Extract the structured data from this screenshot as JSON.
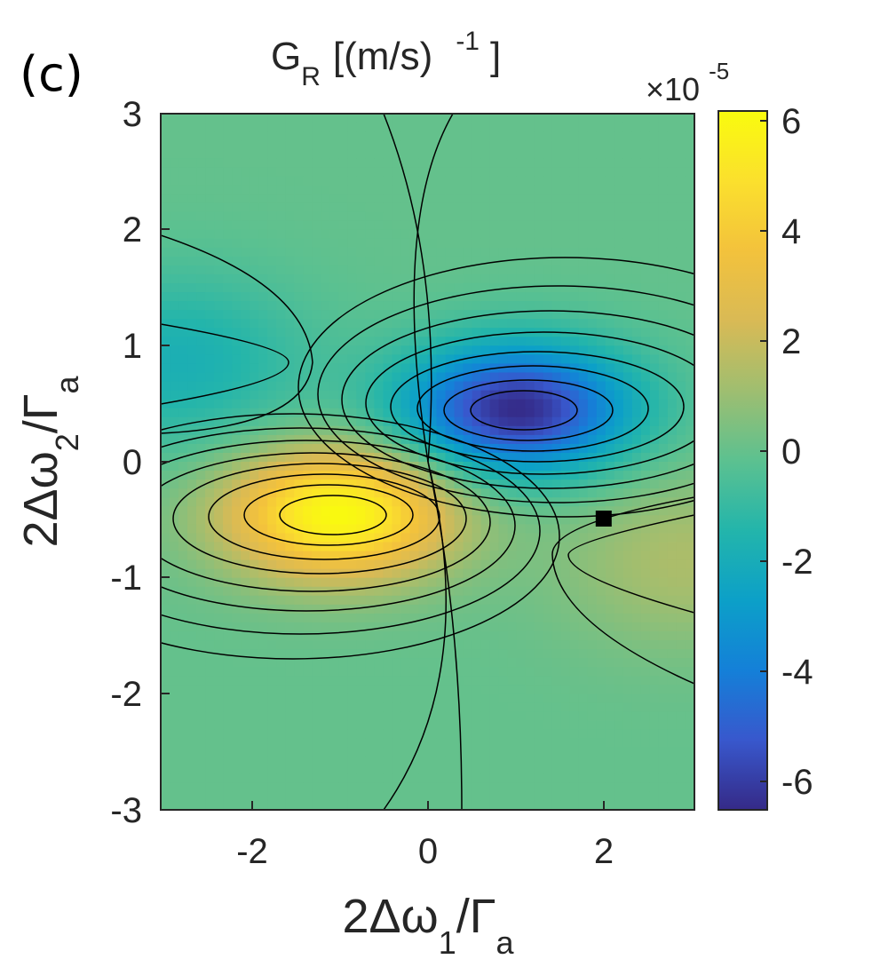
{
  "panel_label": "(c)",
  "title": {
    "main": "G",
    "sub": "R",
    "rest": "[(m/s)",
    "sup": "-1",
    "close": "]"
  },
  "colorbar": {
    "multiplier": "×10",
    "exponent": "-5",
    "ticks": [
      "6",
      "4",
      "2",
      "0",
      "-2",
      "-4",
      "-6"
    ]
  },
  "x_ticks": [
    "-2",
    "0",
    "2"
  ],
  "y_ticks": [
    "3",
    "2",
    "1",
    "0",
    "-1",
    "-2",
    "-3"
  ],
  "xlabel": {
    "pre": "2Δω",
    "sub": "1",
    "mid": "/Γ",
    "sub2": "a"
  },
  "ylabel": {
    "pre": "2Δω",
    "sub": "2",
    "mid": "/Γ",
    "sub2": "a"
  },
  "colormap": "parula",
  "chart_data": {
    "type": "heatmap",
    "subtype": "filled contour",
    "title": "G_R [(m/s)^-1]",
    "xlabel": "2Δω_1/Γ_a",
    "ylabel": "2Δω_2/Γ_a",
    "xlim": [
      -3,
      3
    ],
    "ylim": [
      -3,
      3
    ],
    "clim": [
      -6.5,
      6.2
    ],
    "color_scale_exponent": -5,
    "features": [
      {
        "kind": "maximum",
        "x": -1.0,
        "y": -0.45,
        "value": 6.2
      },
      {
        "kind": "minimum",
        "x": 1.0,
        "y": 0.45,
        "value": -6.5
      },
      {
        "kind": "local_minimum",
        "x": -2.8,
        "y": 0.85,
        "value": -1.8
      },
      {
        "kind": "local_maximum",
        "x": 2.9,
        "y": -0.85,
        "value": 1.4
      }
    ],
    "marker": {
      "shape": "square",
      "color": "#000000",
      "x": 1.98,
      "y": -0.49
    }
  }
}
